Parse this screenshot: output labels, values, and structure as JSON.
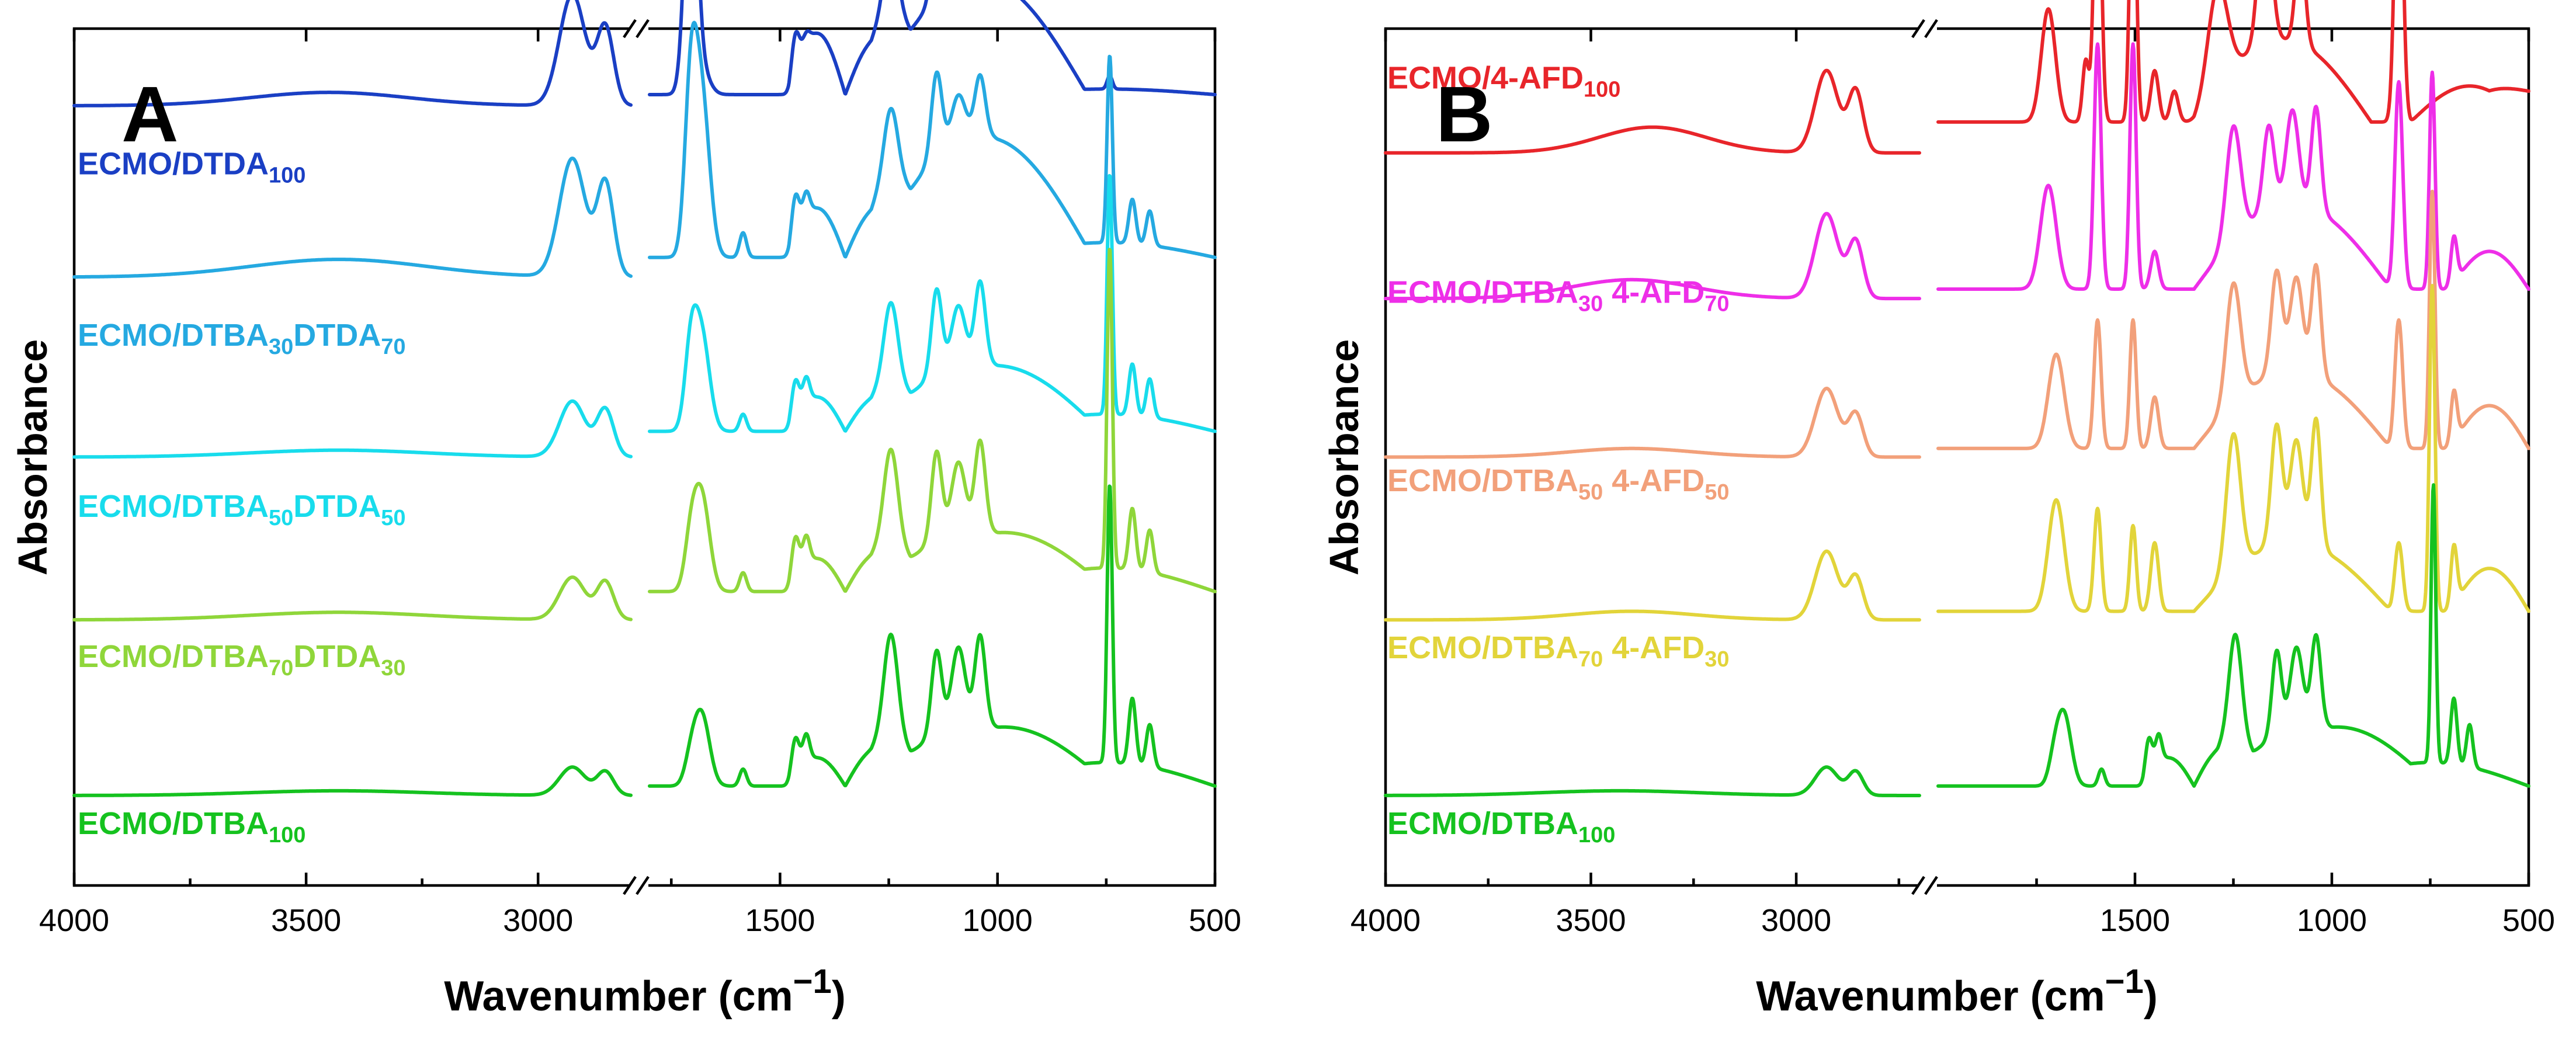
{
  "chart_data": [
    {
      "type": "line",
      "panel": "A",
      "xlabel": "Wavenumber (cm",
      "xlabel_sup": "−1",
      "xlabel_close": ")",
      "ylabel": "Absorbance",
      "x_segments": [
        [
          4000,
          2800
        ],
        [
          1800,
          500
        ]
      ],
      "ticks": [
        {
          "value": 4000,
          "label": "4000"
        },
        {
          "value": 3500,
          "label": "3500"
        },
        {
          "value": 3000,
          "label": "3000"
        },
        {
          "value": 1500,
          "label": "1500"
        },
        {
          "value": 1000,
          "label": "1000"
        },
        {
          "value": 500,
          "label": "500"
        }
      ],
      "series": [
        {
          "name": "ECMO/DTDA100",
          "label_main": "ECMO/DTDA",
          "label_sub1": "100",
          "label_mid": "",
          "label_sub2": "",
          "color": "#1a3fc4",
          "baseline": 0.09,
          "scale": 0.13,
          "label_y": 0.83,
          "profile": "dtda"
        },
        {
          "name": "ECMO/DTBA30DTDA70",
          "label_main": "ECMO/DTBA",
          "label_sub1": "30",
          "label_mid": "DTDA",
          "label_sub2": "70",
          "color": "#25a9e1",
          "baseline": 0.29,
          "scale": 0.115,
          "label_y": 0.63,
          "profile": "mixA1"
        },
        {
          "name": "ECMO/DTBA50DTDA50",
          "label_main": "ECMO/DTBA",
          "label_sub1": "50",
          "label_mid": "DTDA",
          "label_sub2": "50",
          "color": "#18dcec",
          "baseline": 0.5,
          "scale": 0.1,
          "label_y": 0.43,
          "profile": "mixA2"
        },
        {
          "name": "ECMO/DTBA70DTDA30",
          "label_main": "ECMO/DTBA",
          "label_sub1": "70",
          "label_mid": "DTDA",
          "label_sub2": "30",
          "color": "#8fd63a",
          "baseline": 0.69,
          "scale": 0.11,
          "label_y": 0.255,
          "profile": "mixA3"
        },
        {
          "name": "ECMO/DTBA100",
          "label_main": "ECMO/DTBA",
          "label_sub1": "100",
          "label_mid": "",
          "label_sub2": "",
          "color": "#15c21f",
          "baseline": 0.895,
          "scale": 0.11,
          "label_y": 0.06,
          "profile": "dtba"
        }
      ]
    },
    {
      "type": "line",
      "panel": "B",
      "xlabel": "Wavenumber (cm",
      "xlabel_sup": "−1",
      "xlabel_close": ")",
      "ylabel": "Absorbance",
      "x_segments": [
        [
          4000,
          2700
        ],
        [
          2000,
          500
        ]
      ],
      "ticks": [
        {
          "value": 4000,
          "label": "4000"
        },
        {
          "value": 3500,
          "label": "3500"
        },
        {
          "value": 3000,
          "label": "3000"
        },
        {
          "value": 1500,
          "label": "1500"
        },
        {
          "value": 1000,
          "label": "1000"
        },
        {
          "value": 500,
          "label": "500"
        }
      ],
      "series": [
        {
          "name": "ECMO/4-AFD100",
          "label_main": "ECMO/4-AFD",
          "label_sub1": "100",
          "label_mid": "",
          "label_sub2": "",
          "color": "#e8252a",
          "baseline": 0.145,
          "scale": 0.12,
          "label_y": 0.93,
          "profile": "afd"
        },
        {
          "name": "ECMO/DTBA30 4-AFD70",
          "label_main": "ECMO/DTBA",
          "label_sub1": "30",
          "label_mid": " 4-AFD",
          "label_sub2": "70",
          "color": "#ee2ee8",
          "baseline": 0.315,
          "scale": 0.11,
          "label_y": 0.68,
          "profile": "mixB1"
        },
        {
          "name": "ECMO/DTBA50 4-AFD50",
          "label_main": "ECMO/DTBA",
          "label_sub1": "50",
          "label_mid": " 4-AFD",
          "label_sub2": "50",
          "color": "#f2a07a",
          "baseline": 0.5,
          "scale": 0.1,
          "label_y": 0.46,
          "profile": "mixB2"
        },
        {
          "name": "ECMO/DTBA70 4-AFD30",
          "label_main": "ECMO/DTBA",
          "label_sub1": "70",
          "label_mid": " 4-AFD",
          "label_sub2": "30",
          "color": "#e2d43a",
          "baseline": 0.69,
          "scale": 0.1,
          "label_y": 0.265,
          "profile": "mixB3"
        },
        {
          "name": "ECMO/DTBA100",
          "label_main": "ECMO/DTBA",
          "label_sub1": "100",
          "label_mid": "",
          "label_sub2": "",
          "color": "#15c21f",
          "baseline": 0.895,
          "scale": 0.11,
          "label_y": 0.06,
          "profile": "dtba"
        }
      ]
    }
  ]
}
